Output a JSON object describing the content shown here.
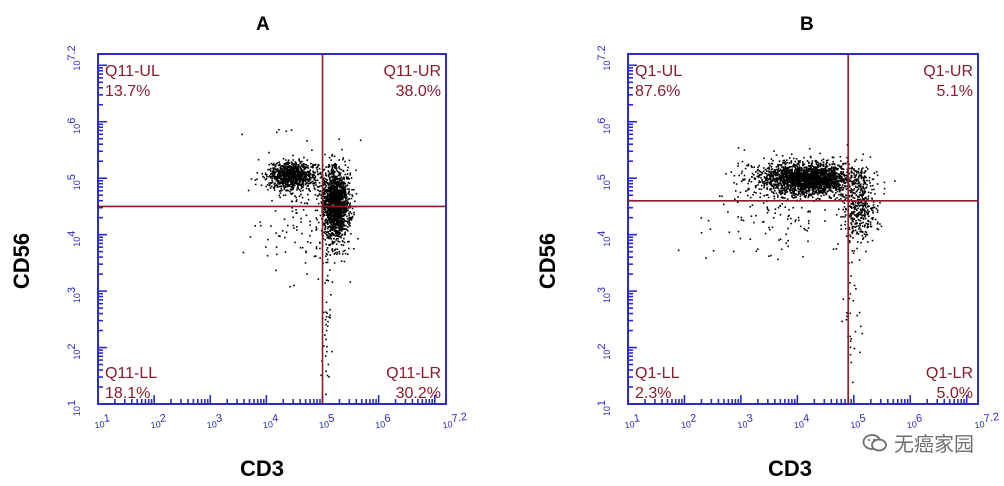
{
  "chart_data": [
    {
      "type": "scatter",
      "title": "A",
      "xlabel": "CD3",
      "ylabel": "CD56",
      "xscale": "log",
      "yscale": "log",
      "xlim": [
        10,
        15848932
      ],
      "ylim": [
        10,
        15848932
      ],
      "x_ticks": [
        "10^1",
        "10^2",
        "10^3",
        "10^4",
        "10^5",
        "10^6",
        "10^7.2"
      ],
      "y_ticks": [
        "10^1",
        "10^2",
        "10^3",
        "10^4",
        "10^5",
        "10^6",
        "10^7.2"
      ],
      "gate": {
        "x": 100000,
        "y": 31623
      },
      "quadrants": [
        {
          "position": "top-left",
          "label": "Q11-UL",
          "percent": "13.7%"
        },
        {
          "position": "top-right",
          "label": "Q11-UR",
          "percent": "38.0%"
        },
        {
          "position": "bottom-left",
          "label": "Q11-LL",
          "percent": "18.1%"
        },
        {
          "position": "bottom-right",
          "label": "Q11-LR",
          "percent": "30.2%"
        }
      ],
      "clusters": [
        {
          "cx": 4.45,
          "cy": 5.05,
          "sx": 0.22,
          "sy": 0.12,
          "n": 900
        },
        {
          "cx": 5.22,
          "cy": 4.55,
          "sx": 0.12,
          "sy": 0.32,
          "n": 1500
        },
        {
          "cx": 4.7,
          "cy": 4.4,
          "sx": 0.45,
          "sy": 0.6,
          "n": 170
        },
        {
          "cx": 5.05,
          "cy": 2.3,
          "sx": 0.04,
          "sy": 0.8,
          "n": 40
        }
      ]
    },
    {
      "type": "scatter",
      "title": "B",
      "xlabel": "CD3",
      "ylabel": "CD56",
      "xscale": "log",
      "yscale": "log",
      "xlim": [
        10,
        15848932
      ],
      "ylim": [
        10,
        15848932
      ],
      "x_ticks": [
        "10^1",
        "10^2",
        "10^3",
        "10^4",
        "10^5",
        "10^6",
        "10^7.2"
      ],
      "y_ticks": [
        "10^1",
        "10^2",
        "10^3",
        "10^4",
        "10^5",
        "10^6",
        "10^7.2"
      ],
      "gate": {
        "x": 79433,
        "y": 39811
      },
      "quadrants": [
        {
          "position": "top-left",
          "label": "Q1-UL",
          "percent": "87.6%"
        },
        {
          "position": "top-right",
          "label": "Q1-UR",
          "percent": "5.1%"
        },
        {
          "position": "bottom-left",
          "label": "Q1-LL",
          "percent": "2.3%"
        },
        {
          "position": "bottom-right",
          "label": "Q1-LR",
          "percent": "5.0%"
        }
      ],
      "clusters": [
        {
          "cx": 4.2,
          "cy": 5.0,
          "sx": 0.42,
          "sy": 0.14,
          "n": 2200
        },
        {
          "cx": 5.1,
          "cy": 4.5,
          "sx": 0.14,
          "sy": 0.3,
          "n": 380
        },
        {
          "cx": 3.6,
          "cy": 4.55,
          "sx": 0.6,
          "sy": 0.45,
          "n": 160
        },
        {
          "cx": 4.95,
          "cy": 2.9,
          "sx": 0.06,
          "sy": 0.6,
          "n": 35
        }
      ]
    }
  ],
  "watermark": {
    "text": "无癌家园",
    "icon": "wechat-icon"
  },
  "colors": {
    "axis": "#2b2bc8",
    "gate": "#8b1a2b",
    "quadrant_text": "#8b1a2b",
    "dots": "#000000"
  }
}
